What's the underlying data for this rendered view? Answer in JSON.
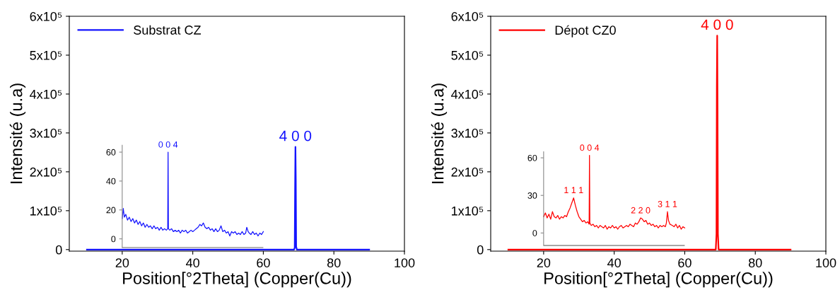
{
  "chart_data": [
    {
      "type": "line",
      "xlabel": "Position[°2Theta] (Copper(Cu))",
      "ylabel": "Intensité (u.a)",
      "xlim": [
        5,
        100
      ],
      "xticks": [
        20,
        40,
        60,
        80,
        100
      ],
      "ylim": [
        -4000,
        600000
      ],
      "yticks": [
        {
          "value": 0,
          "label": "0"
        },
        {
          "value": 100000,
          "label": "1x10⁵"
        },
        {
          "value": 200000,
          "label": "2x10⁵"
        },
        {
          "value": 300000,
          "label": "3x10⁵"
        },
        {
          "value": 400000,
          "label": "4x10⁵"
        },
        {
          "value": 500000,
          "label": "5x10⁵"
        },
        {
          "value": 600000,
          "label": "6x10⁵"
        }
      ],
      "y2lim": [
        -8.5,
        154
      ],
      "y2ticks": [
        0,
        20,
        40,
        60
      ],
      "ref_lines": [
        {
          "axis": "y2",
          "value": -6,
          "color": "#888888"
        }
      ],
      "legend": "top left",
      "grid": false,
      "series": [
        {
          "name": "Substrat CZ",
          "color": "#1414ff",
          "x": [
            10,
            68.7,
            68.9,
            69.0,
            69.1,
            69.2,
            69.3,
            69.5,
            90
          ],
          "values": [
            0,
            0,
            5000,
            150000,
            264000,
            180000,
            8000,
            0,
            0
          ]
        },
        {
          "color": "#1414ff",
          "axis": "y2",
          "x": [
            20,
            20.3,
            20.6,
            21,
            21.5,
            22,
            22.5,
            23,
            23.5,
            24,
            24.5,
            25,
            25.5,
            26,
            26.5,
            27,
            27.5,
            28,
            28.5,
            29,
            29.5,
            30,
            30.5,
            31,
            31.5,
            32,
            32.5,
            32.9,
            33.0,
            33.1,
            33.5,
            34,
            34.5,
            35,
            35.5,
            36,
            36.5,
            37,
            37.5,
            38,
            38.5,
            39,
            39.5,
            40,
            40.5,
            41,
            41.5,
            42,
            42.5,
            43,
            43.5,
            44,
            44.5,
            45,
            45.5,
            46,
            46.5,
            47,
            47.5,
            48,
            48.5,
            49,
            49.5,
            50,
            50.5,
            51,
            51.5,
            52,
            52.5,
            53,
            53.5,
            54,
            54.5,
            55,
            55.3,
            55.7,
            56,
            56.5,
            57,
            57.5,
            58,
            58.5,
            59,
            59.5,
            60
          ],
          "values": [
            14,
            21,
            15,
            17,
            13,
            15,
            12,
            14,
            11,
            13,
            10,
            12,
            9,
            11,
            8,
            10,
            8,
            9,
            7,
            9,
            7,
            8,
            6,
            8,
            6,
            7,
            6,
            7,
            60,
            7,
            6,
            7,
            5,
            6,
            5,
            6,
            4,
            6,
            5,
            6,
            4,
            5,
            6,
            5,
            6,
            7,
            8,
            10,
            9,
            11,
            8,
            7,
            8,
            6,
            7,
            5,
            7,
            5,
            6,
            9,
            5,
            6,
            4,
            5,
            2,
            5,
            4,
            5,
            3,
            4,
            3,
            5,
            3,
            4,
            8,
            5,
            4,
            3,
            5,
            3,
            4,
            2,
            4,
            3,
            5
          ]
        }
      ],
      "annotations": [
        {
          "text": "4 0 0",
          "x": 69.1,
          "y": 264000
        },
        {
          "text": "0 0 4",
          "x": 33.0,
          "y": 250000
        }
      ]
    },
    {
      "type": "line",
      "xlabel": "Position[°2Theta] (Copper(Cu))",
      "ylabel": "Intensité (u.a)",
      "xlim": [
        5,
        100
      ],
      "xticks": [
        20,
        40,
        60,
        80,
        100
      ],
      "ylim": [
        -4000,
        600000
      ],
      "yticks": [
        {
          "value": 0,
          "label": "0"
        },
        {
          "value": 100000,
          "label": "1x10⁵"
        },
        {
          "value": 200000,
          "label": "2x10⁵"
        },
        {
          "value": 300000,
          "label": "3x10⁵"
        },
        {
          "value": 400000,
          "label": "4x10⁵"
        },
        {
          "value": 500000,
          "label": "5x10⁵"
        },
        {
          "value": 600000,
          "label": "6x10⁵"
        }
      ],
      "y2lim": [
        -14.5,
        173
      ],
      "y2ticks": [
        0,
        30,
        60
      ],
      "ref_lines": [
        {
          "axis": "y2",
          "value": -10,
          "color": "#888888"
        }
      ],
      "legend": "top left",
      "grid": false,
      "series": [
        {
          "name": "Dépot CZ0",
          "color": "#ff0000",
          "x": [
            10,
            68.8,
            69.0,
            69.1,
            69.2,
            69.3,
            69.4,
            69.6,
            90
          ],
          "values": [
            0,
            0,
            40000,
            420000,
            550000,
            350000,
            40000,
            0,
            0
          ]
        },
        {
          "color": "#ff0000",
          "axis": "y2",
          "x": [
            20,
            20.5,
            21,
            21.5,
            22,
            22.5,
            23,
            23.5,
            24,
            24.5,
            25,
            25.5,
            26,
            26.5,
            27,
            27.5,
            28,
            28.5,
            29,
            29.5,
            30,
            30.5,
            31,
            31.5,
            32,
            32.5,
            32.9,
            33.0,
            33.1,
            33.5,
            34,
            34.5,
            35,
            35.5,
            36,
            36.5,
            37,
            37.5,
            38,
            38.5,
            39,
            39.5,
            40,
            40.5,
            41,
            41.5,
            42,
            42.5,
            43,
            43.5,
            44,
            44.5,
            45,
            45.5,
            46,
            46.5,
            47,
            47.5,
            48,
            48.5,
            49,
            49.5,
            50,
            50.5,
            51,
            51.5,
            52,
            52.5,
            53,
            53.5,
            54,
            54.5,
            54.8,
            55.1,
            55.4,
            55.8,
            56.5,
            57,
            57.5,
            58,
            58.5,
            59,
            59.5,
            60
          ],
          "values": [
            13,
            16,
            12,
            15,
            11,
            17,
            13,
            12,
            14,
            11,
            13,
            12,
            14,
            13,
            17,
            20,
            24,
            28,
            22,
            17,
            13,
            11,
            9,
            10,
            8,
            9,
            7,
            62,
            8,
            6,
            7,
            5,
            6,
            4,
            6,
            5,
            4,
            6,
            3,
            5,
            4,
            6,
            4,
            5,
            3,
            5,
            6,
            4,
            5,
            6,
            5,
            7,
            6,
            5,
            8,
            7,
            9,
            12,
            11,
            9,
            10,
            7,
            8,
            6,
            7,
            5,
            6,
            4,
            6,
            5,
            6,
            5,
            8,
            17,
            10,
            7,
            6,
            5,
            7,
            4,
            6,
            3,
            5,
            4
          ]
        }
      ],
      "annotations": [
        {
          "text": "4 0 0",
          "x": 69.2,
          "y": 550000
        },
        {
          "text": "1 1 1",
          "x": 28.5,
          "y": 133000
        },
        {
          "text": "0 0 4",
          "x": 33.0,
          "y": 242000
        },
        {
          "text": "2 2 0",
          "x": 47.5,
          "y": 81000
        },
        {
          "text": "3 1 1",
          "x": 55.1,
          "y": 97000
        }
      ]
    }
  ]
}
